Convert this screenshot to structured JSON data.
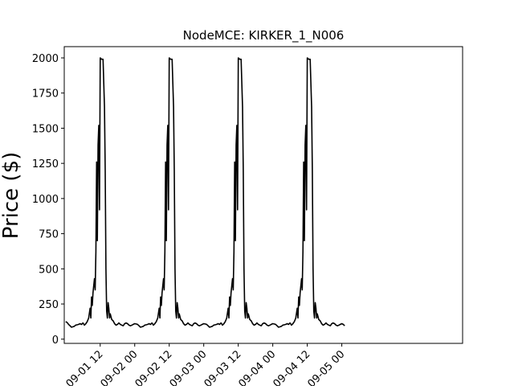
{
  "chart_data": {
    "type": "line",
    "title": "NodeMCE: KIRKER_1_N006",
    "xlabel": "",
    "ylabel": "Price ($)",
    "x_range_hours": [
      -0.5,
      138
    ],
    "ylim": [
      -30,
      2080
    ],
    "y_ticks": [
      0,
      250,
      500,
      750,
      1000,
      1250,
      1500,
      1750,
      2000
    ],
    "x_ticks": [
      {
        "label": "09-01 12",
        "hour": 12
      },
      {
        "label": "09-02 00",
        "hour": 24
      },
      {
        "label": "09-02 12",
        "hour": 36
      },
      {
        "label": "09-03 00",
        "hour": 48
      },
      {
        "label": "09-03 12",
        "hour": 60
      },
      {
        "label": "09-04 00",
        "hour": 72
      },
      {
        "label": "09-04 12",
        "hour": 84
      },
      {
        "label": "09-05 00",
        "hour": 96
      }
    ],
    "series_color": "#000000",
    "daily_profile": [
      [
        0,
        110
      ],
      [
        0.5,
        108
      ],
      [
        1,
        105
      ],
      [
        1.5,
        95
      ],
      [
        2,
        85
      ],
      [
        2.5,
        88
      ],
      [
        3,
        92
      ],
      [
        3.5,
        100
      ],
      [
        4,
        102
      ],
      [
        4.5,
        105
      ],
      [
        5,
        110
      ],
      [
        5.5,
        105
      ],
      [
        6,
        115
      ],
      [
        6.5,
        100
      ],
      [
        7,
        110
      ],
      [
        7.5,
        125
      ],
      [
        8,
        150
      ],
      [
        8.5,
        220
      ],
      [
        8.75,
        150
      ],
      [
        9,
        300
      ],
      [
        9.25,
        240
      ],
      [
        9.5,
        330
      ],
      [
        10,
        430
      ],
      [
        10.25,
        350
      ],
      [
        10.5,
        620
      ],
      [
        10.75,
        1260
      ],
      [
        11,
        700
      ],
      [
        11.25,
        1380
      ],
      [
        11.5,
        1520
      ],
      [
        11.75,
        920
      ],
      [
        12,
        2000
      ],
      [
        12.5,
        1990
      ],
      [
        13,
        1990
      ],
      [
        13.5,
        1650
      ],
      [
        13.75,
        1200
      ],
      [
        14,
        500
      ],
      [
        14.25,
        200
      ],
      [
        14.5,
        150
      ],
      [
        14.75,
        260
      ],
      [
        15,
        220
      ],
      [
        15.25,
        150
      ],
      [
        15.5,
        180
      ],
      [
        16,
        140
      ],
      [
        16.5,
        130
      ],
      [
        17,
        110
      ],
      [
        17.5,
        100
      ],
      [
        18,
        105
      ],
      [
        18.5,
        115
      ],
      [
        19,
        105
      ],
      [
        19.5,
        100
      ],
      [
        20,
        95
      ],
      [
        20.5,
        110
      ],
      [
        21,
        115
      ],
      [
        21.5,
        110
      ],
      [
        22,
        100
      ],
      [
        22.5,
        95
      ],
      [
        23,
        100
      ],
      [
        23.5,
        105
      ]
    ],
    "series_points": [
      [
        0,
        125
      ],
      [
        0.5,
        118
      ],
      [
        1,
        100
      ],
      [
        1.5,
        95
      ],
      [
        2,
        85
      ],
      [
        2.5,
        88
      ],
      [
        3,
        92
      ],
      [
        3.5,
        100
      ],
      [
        4,
        102
      ],
      [
        4.5,
        105
      ],
      [
        5,
        110
      ],
      [
        5.5,
        105
      ],
      [
        6,
        115
      ],
      [
        6.5,
        100
      ],
      [
        7,
        110
      ],
      [
        7.5,
        125
      ],
      [
        8,
        150
      ],
      [
        8.5,
        220
      ],
      [
        8.75,
        150
      ],
      [
        9,
        300
      ],
      [
        9.25,
        240
      ],
      [
        9.5,
        330
      ],
      [
        10,
        430
      ],
      [
        10.25,
        350
      ],
      [
        10.5,
        620
      ],
      [
        10.75,
        1260
      ],
      [
        11,
        700
      ],
      [
        11.25,
        1380
      ],
      [
        11.5,
        1520
      ],
      [
        11.75,
        920
      ],
      [
        12,
        2000
      ],
      [
        12.5,
        1990
      ],
      [
        13,
        1990
      ],
      [
        13.5,
        1650
      ],
      [
        13.75,
        1200
      ],
      [
        14,
        500
      ],
      [
        14.25,
        200
      ],
      [
        14.5,
        150
      ],
      [
        14.75,
        260
      ],
      [
        15,
        220
      ],
      [
        15.25,
        150
      ],
      [
        15.5,
        180
      ],
      [
        16,
        140
      ],
      [
        16.5,
        130
      ],
      [
        17,
        110
      ],
      [
        17.5,
        100
      ],
      [
        18,
        105
      ],
      [
        18.5,
        115
      ],
      [
        19,
        105
      ],
      [
        19.5,
        100
      ],
      [
        20,
        95
      ],
      [
        20.5,
        110
      ],
      [
        21,
        115
      ],
      [
        21.5,
        110
      ],
      [
        22,
        100
      ],
      [
        22.5,
        95
      ],
      [
        23,
        100
      ],
      [
        23.5,
        105
      ]
    ],
    "days": 4,
    "day_offset_hours": 0,
    "series_tail": [
      [
        96,
        110
      ],
      [
        96.5,
        105
      ],
      [
        97,
        95
      ]
    ]
  }
}
